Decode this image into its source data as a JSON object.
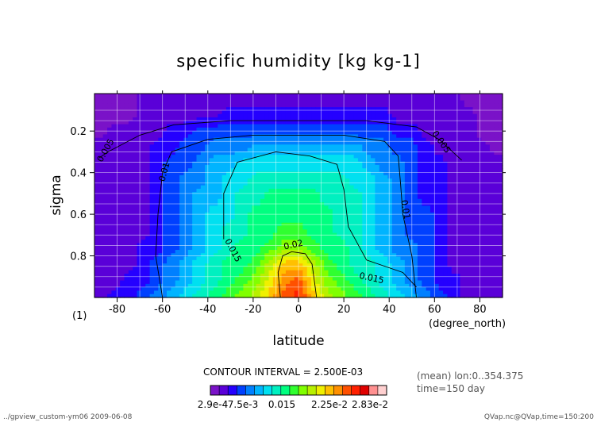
{
  "chart_data": {
    "type": "heatmap",
    "subtype": "filled-contour",
    "title": "specific humidity [kg kg-1]",
    "xlabel": "latitude",
    "xunit": "(degree_north)",
    "ylabel": "sigma",
    "yunit": "(1)",
    "xlim": [
      -90,
      90
    ],
    "ylim": [
      1.0,
      0.02
    ],
    "x_ticks": [
      -80,
      -60,
      -40,
      -20,
      0,
      20,
      40,
      60,
      80
    ],
    "x_tick_labels": [
      "-80",
      "-60",
      "-40",
      "-20",
      "0",
      "20",
      "40",
      "60",
      "80"
    ],
    "y_ticks": [
      0.2,
      0.4,
      0.6,
      0.8
    ],
    "y_tick_labels": [
      "0.2",
      "0.4",
      "0.6",
      "0.8"
    ],
    "grid": true,
    "contour_interval": "CONTOUR INTERVAL = 2.500E-03",
    "contour_lines": [
      {
        "level": 0.005,
        "label": "0.005"
      },
      {
        "level": 0.01,
        "label": "0.01"
      },
      {
        "level": 0.015,
        "label": "0.015"
      },
      {
        "level": 0.02,
        "label": "0.02"
      }
    ],
    "colorbar": {
      "tick_labels": [
        "2.9e-4",
        "7.5e-3",
        "0.015",
        "2.25e-2",
        "2.83e-2"
      ],
      "colors": [
        "#7a12c8",
        "#5a00d8",
        "#2500ff",
        "#0040ff",
        "#0080ff",
        "#00b4ff",
        "#00e0f0",
        "#00f0c0",
        "#00ff80",
        "#30ff30",
        "#80ff00",
        "#b8f000",
        "#f0f000",
        "#ffc000",
        "#ff9000",
        "#ff5000",
        "#ff2000",
        "#e00000",
        "#ff9090",
        "#ffd0d0"
      ]
    },
    "field_levels": [
      [
        0,
        0,
        0,
        1,
        1,
        1,
        1,
        1,
        1,
        1,
        1,
        1,
        1,
        1,
        1,
        1,
        1,
        1,
        1,
        1,
        1,
        1,
        1,
        1,
        1,
        1,
        0,
        0,
        0
      ],
      [
        0,
        0,
        0,
        1,
        1,
        1,
        1,
        1,
        1,
        2,
        2,
        2,
        2,
        2,
        2,
        2,
        2,
        2,
        2,
        2,
        2,
        1,
        1,
        1,
        1,
        1,
        1,
        0,
        0
      ],
      [
        0,
        1,
        1,
        1,
        1,
        2,
        2,
        3,
        3,
        3,
        3,
        3,
        3,
        3,
        3,
        3,
        3,
        3,
        3,
        3,
        3,
        2,
        2,
        1,
        1,
        1,
        1,
        0,
        0
      ],
      [
        1,
        1,
        1,
        1,
        2,
        2,
        3,
        3,
        4,
        4,
        4,
        5,
        5,
        5,
        5,
        5,
        5,
        5,
        5,
        4,
        4,
        3,
        3,
        2,
        1,
        1,
        1,
        1,
        0
      ],
      [
        1,
        1,
        1,
        1,
        2,
        3,
        3,
        4,
        5,
        5,
        6,
        6,
        6,
        6,
        6,
        6,
        6,
        6,
        6,
        5,
        4,
        4,
        3,
        2,
        2,
        1,
        1,
        1,
        1
      ],
      [
        1,
        1,
        1,
        1,
        2,
        3,
        4,
        4,
        5,
        6,
        6,
        7,
        7,
        7,
        7,
        7,
        7,
        7,
        6,
        6,
        5,
        4,
        3,
        2,
        2,
        1,
        1,
        1,
        1
      ],
      [
        1,
        1,
        1,
        1,
        2,
        3,
        4,
        5,
        5,
        6,
        7,
        7,
        8,
        8,
        8,
        8,
        7,
        7,
        7,
        6,
        5,
        4,
        3,
        2,
        2,
        1,
        1,
        1,
        1
      ],
      [
        1,
        1,
        1,
        1,
        2,
        3,
        4,
        5,
        6,
        6,
        7,
        8,
        8,
        8,
        8,
        8,
        8,
        7,
        7,
        6,
        5,
        4,
        3,
        3,
        2,
        1,
        1,
        1,
        1
      ],
      [
        1,
        1,
        1,
        1,
        2,
        3,
        4,
        5,
        6,
        7,
        7,
        8,
        8,
        9,
        9,
        8,
        8,
        7,
        7,
        6,
        5,
        4,
        3,
        3,
        2,
        1,
        1,
        1,
        1
      ],
      [
        1,
        1,
        1,
        2,
        2,
        3,
        4,
        5,
        6,
        7,
        8,
        8,
        9,
        10,
        10,
        9,
        8,
        8,
        7,
        6,
        5,
        4,
        4,
        3,
        2,
        1,
        1,
        1,
        1
      ],
      [
        1,
        1,
        1,
        2,
        3,
        4,
        5,
        6,
        7,
        8,
        8,
        9,
        11,
        13,
        13,
        11,
        9,
        8,
        7,
        7,
        6,
        5,
        4,
        3,
        2,
        1,
        1,
        1,
        1
      ],
      [
        1,
        1,
        2,
        2,
        3,
        4,
        5,
        6,
        7,
        8,
        9,
        10,
        12,
        14,
        15,
        12,
        10,
        9,
        8,
        7,
        6,
        5,
        4,
        3,
        2,
        2,
        1,
        1,
        1
      ],
      [
        1,
        2,
        2,
        3,
        4,
        5,
        6,
        7,
        8,
        9,
        10,
        11,
        13,
        15,
        16,
        13,
        11,
        10,
        9,
        8,
        7,
        6,
        5,
        4,
        3,
        2,
        1,
        1,
        1
      ]
    ],
    "field_sigma": [
      0.05,
      0.12,
      0.2,
      0.28,
      0.36,
      0.44,
      0.52,
      0.6,
      0.68,
      0.76,
      0.84,
      0.92,
      1.0
    ]
  },
  "footer": {
    "mean_note": "(mean) lon:0..354.375",
    "time_note": "time=150 day",
    "left_note": "../gpview_custom-ym06  2009-06-08",
    "right_note": "QVap.nc@QVap,time=150:200"
  }
}
